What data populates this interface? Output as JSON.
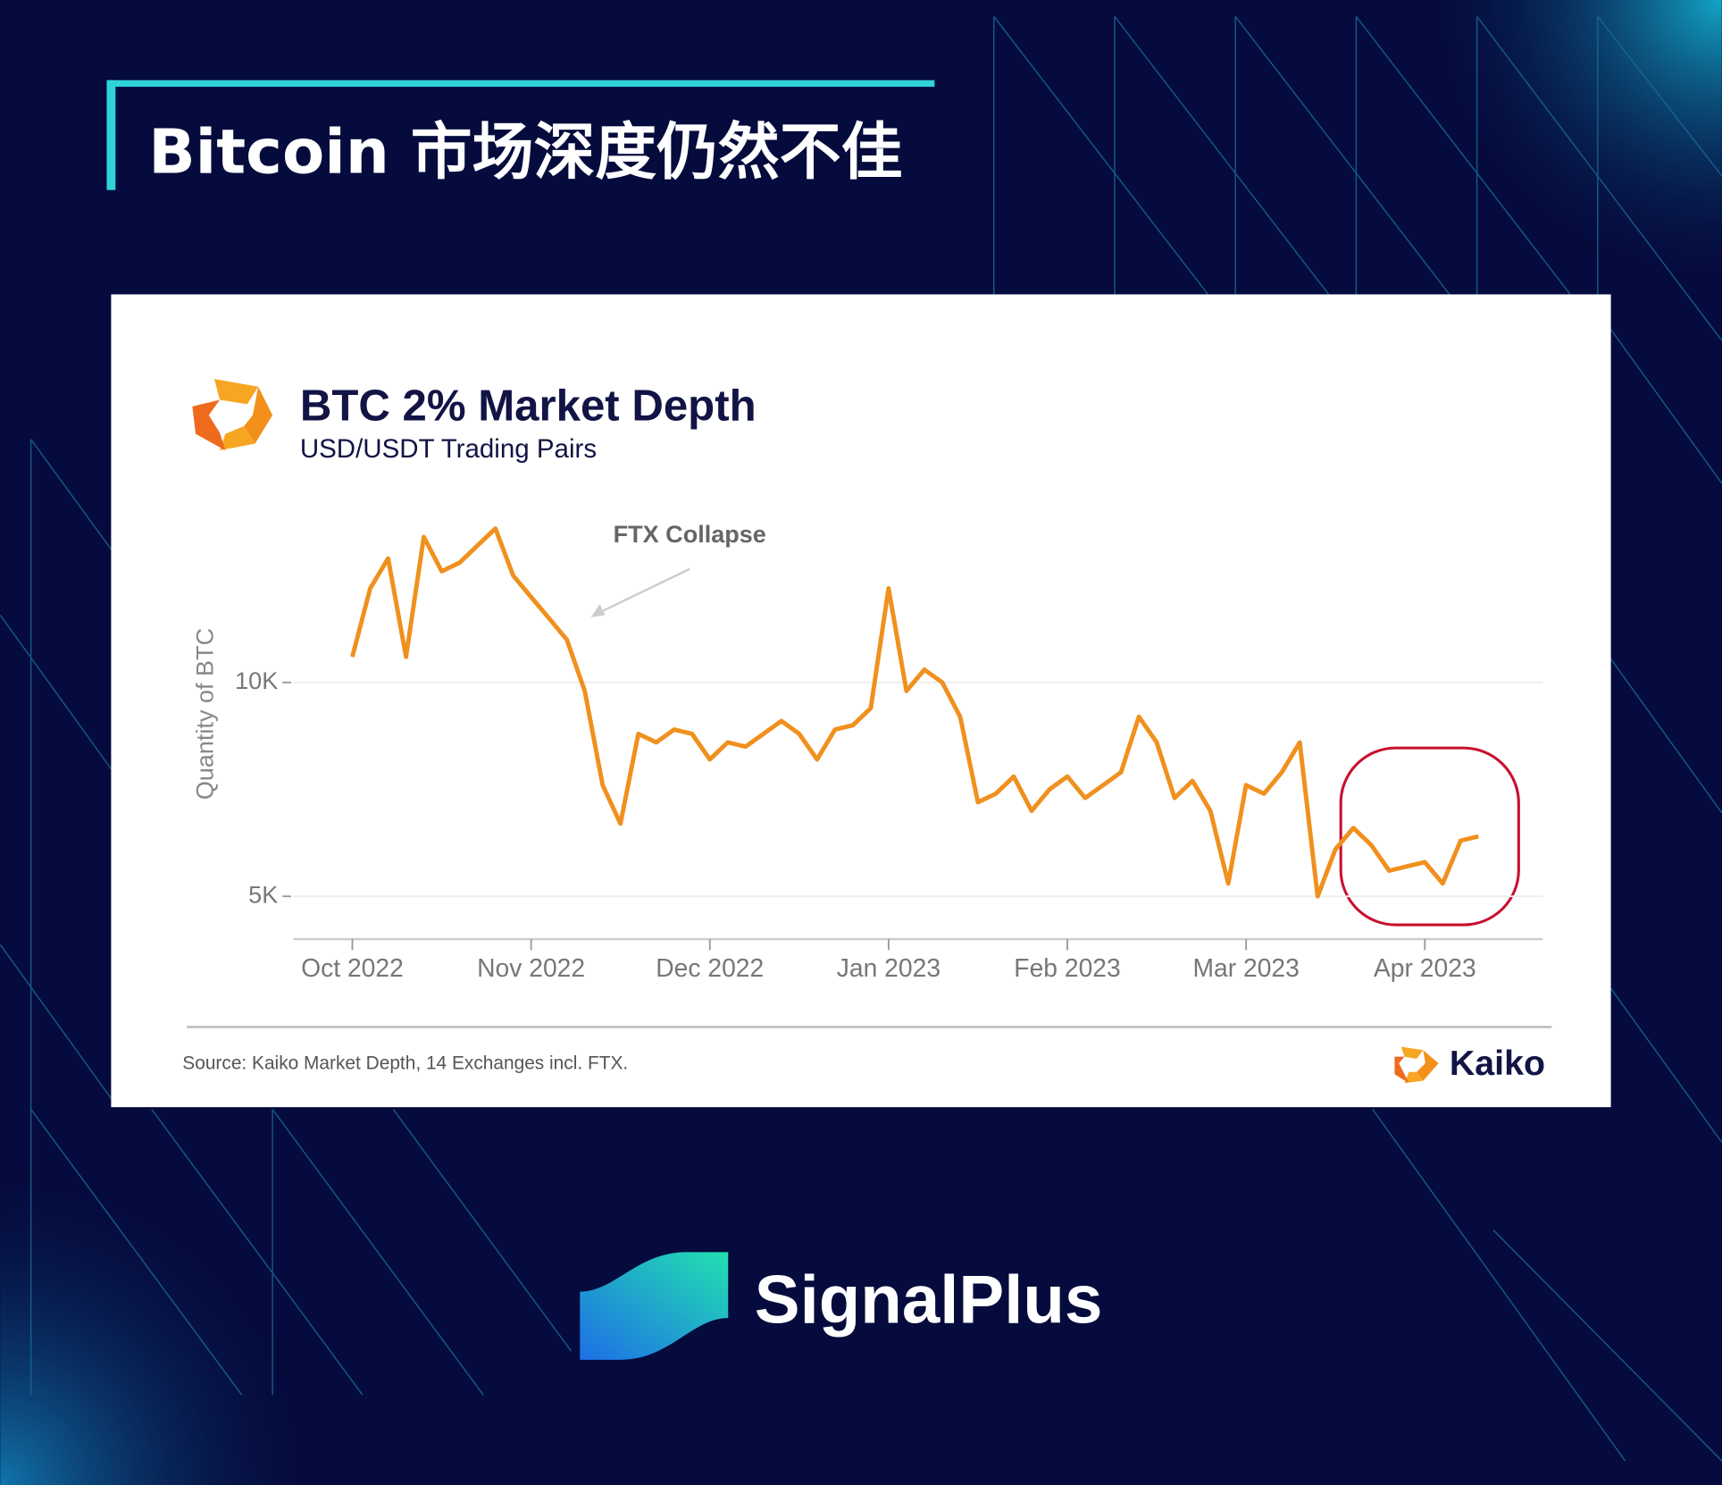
{
  "header": {
    "title": "Bitcoin 市场深度仍然不佳"
  },
  "chart_data": {
    "type": "line",
    "title": "BTC 2% Market Depth",
    "subtitle": "USD/USDT Trading Pairs",
    "y_label": "Quantity of BTC",
    "annotation": "FTX Collapse",
    "x": [
      0,
      0.1,
      0.2,
      0.3,
      0.4,
      0.5,
      0.6,
      0.7,
      0.8,
      0.9,
      1.0,
      1.1,
      1.2,
      1.3,
      1.4,
      1.5,
      1.6,
      1.7,
      1.8,
      1.9,
      2.0,
      2.1,
      2.2,
      2.3,
      2.4,
      2.5,
      2.6,
      2.7,
      2.8,
      2.9,
      3.0,
      3.1,
      3.2,
      3.3,
      3.4,
      3.5,
      3.6,
      3.7,
      3.8,
      3.9,
      4.0,
      4.1,
      4.2,
      4.3,
      4.4,
      4.5,
      4.6,
      4.7,
      4.8,
      4.9,
      5.0,
      5.1,
      5.2,
      5.3,
      5.4,
      5.5,
      5.6,
      5.7,
      5.8,
      5.9,
      6.0,
      6.1,
      6.2,
      6.3
    ],
    "values": [
      10600,
      12200,
      12900,
      10600,
      13400,
      12600,
      12800,
      13200,
      13600,
      12500,
      12000,
      11500,
      11000,
      9800,
      7600,
      6700,
      8800,
      8600,
      8900,
      8800,
      8200,
      8600,
      8500,
      8800,
      9100,
      8800,
      8200,
      8900,
      9000,
      9400,
      12200,
      9800,
      10300,
      10000,
      9200,
      7200,
      7400,
      7800,
      7000,
      7500,
      7800,
      7300,
      7600,
      7900,
      9200,
      8600,
      7300,
      7700,
      7000,
      5300,
      7600,
      7400,
      7900,
      8600,
      5000,
      6100,
      6600,
      6200,
      5600,
      5700,
      5800,
      5300,
      6300,
      6400
    ],
    "color": "#f0901e",
    "xlim": [
      -0.33,
      6.66
    ],
    "xticks": [
      {
        "value": 0,
        "label": "Oct 2022"
      },
      {
        "value": 1,
        "label": "Nov 2022"
      },
      {
        "value": 2,
        "label": "Dec 2022"
      },
      {
        "value": 3,
        "label": "Jan 2023"
      },
      {
        "value": 4,
        "label": "Feb 2023"
      },
      {
        "value": 5,
        "label": "Mar 2023"
      },
      {
        "value": 6,
        "label": "Apr 2023"
      }
    ],
    "ylim": [
      4000,
      14400
    ],
    "yticks": [
      {
        "value": 5000,
        "label": "5K"
      },
      {
        "value": 10000,
        "label": "10K"
      }
    ],
    "grid": true
  },
  "footer": {
    "source": "Source: Kaiko Market Depth, 14 Exchanges incl. FTX.",
    "logo": "Kaiko"
  },
  "brand": "SignalPlus"
}
